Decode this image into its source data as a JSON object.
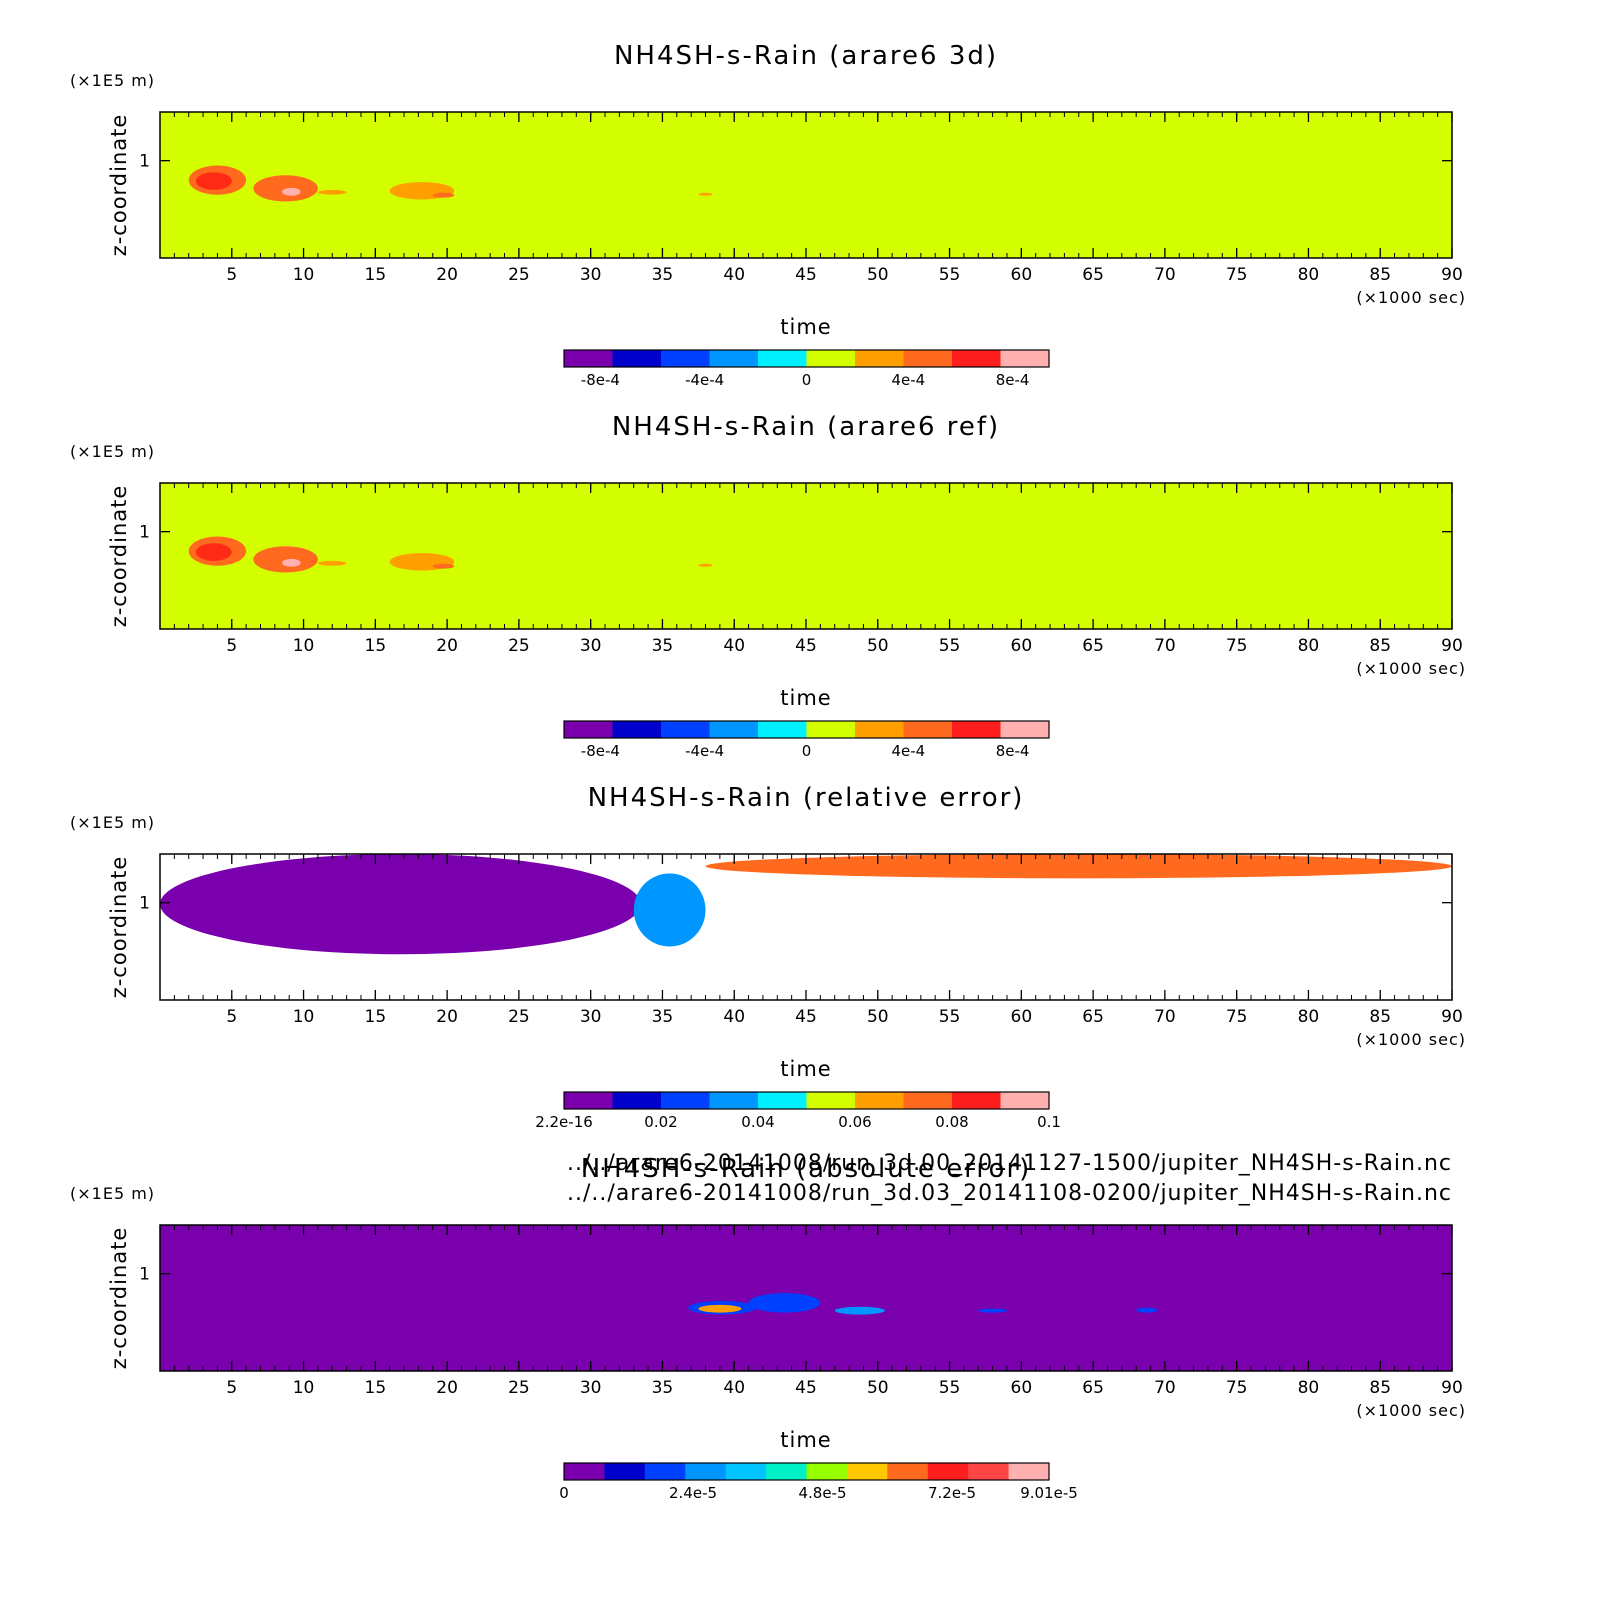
{
  "files": [
    "../../arare6-20141008/run_3d.00_20141127-1500/jupiter_NH4SH-s-Rain.nc",
    "../../arare6-20141008/run_3d.03_20141108-0200/jupiter_NH4SH-s-Rain.nc"
  ],
  "chart_data": [
    {
      "type": "heatmap",
      "title": "NH4SH-s-Rain (arare6 3d)",
      "xlabel": "time",
      "x_unit": "(×1000 sec)",
      "ylabel": "z-coordinate",
      "y_unit": "(×1E5 m)",
      "xlim": [
        0,
        90
      ],
      "ylim": [
        0,
        1.5
      ],
      "xticks": [
        5,
        10,
        15,
        20,
        25,
        30,
        35,
        40,
        45,
        50,
        55,
        60,
        65,
        70,
        75,
        80,
        85,
        90
      ],
      "yticks": [
        1
      ],
      "background_color": "#d4ff00",
      "features": [
        {
          "x": [
            2,
            6
          ],
          "y": [
            0.65,
            0.95
          ],
          "level": "5e-4 to 8e-4",
          "color": "#ff6a1f"
        },
        {
          "x": [
            2.5,
            5
          ],
          "y": [
            0.7,
            0.88
          ],
          "level": "8e-4 to 1e-3",
          "color": "#ff2a16"
        },
        {
          "x": [
            6.5,
            11
          ],
          "y": [
            0.58,
            0.85
          ],
          "level": "5e-4 to 8e-4",
          "color": "#ff6a1f"
        },
        {
          "x": [
            8.5,
            9.8
          ],
          "y": [
            0.64,
            0.72
          ],
          "level": "1e-3",
          "color": "#ffb0b0"
        },
        {
          "x": [
            11,
            13
          ],
          "y": [
            0.65,
            0.7
          ],
          "level": "2e-4 to 4e-4",
          "color": "#ffa000"
        },
        {
          "x": [
            16,
            20.5
          ],
          "y": [
            0.6,
            0.78
          ],
          "level": "2e-4 to 4e-4",
          "color": "#ffa000"
        },
        {
          "x": [
            19,
            20.5
          ],
          "y": [
            0.62,
            0.67
          ],
          "level": "4e-4 to 6e-4",
          "color": "#ff6a1f"
        },
        {
          "x": [
            37.5,
            38.5
          ],
          "y": [
            0.64,
            0.67
          ],
          "level": "2e-4 to 4e-4",
          "color": "#ffa000"
        }
      ],
      "colorbar": {
        "colors": [
          "#7a00ae",
          "#0000cc",
          "#0040ff",
          "#0096ff",
          "#00f0ff",
          "#d4ff00",
          "#ffa000",
          "#ff6a1f",
          "#ff1e1e",
          "#ffb0b0"
        ],
        "tick_labels": [
          "-8e-4",
          "-4e-4",
          "0",
          "4e-4",
          "8e-4"
        ],
        "tick_fractions": [
          0.075,
          0.29,
          0.5,
          0.71,
          0.925
        ]
      }
    },
    {
      "type": "heatmap",
      "title": "NH4SH-s-Rain (arare6 ref)",
      "xlabel": "time",
      "x_unit": "(×1000 sec)",
      "ylabel": "z-coordinate",
      "y_unit": "(×1E5 m)",
      "xlim": [
        0,
        90
      ],
      "ylim": [
        0,
        1.5
      ],
      "xticks": [
        5,
        10,
        15,
        20,
        25,
        30,
        35,
        40,
        45,
        50,
        55,
        60,
        65,
        70,
        75,
        80,
        85,
        90
      ],
      "yticks": [
        1
      ],
      "background_color": "#d4ff00",
      "features": [
        {
          "x": [
            2,
            6
          ],
          "y": [
            0.65,
            0.95
          ],
          "level": "5e-4 to 8e-4",
          "color": "#ff6a1f"
        },
        {
          "x": [
            2.5,
            5
          ],
          "y": [
            0.7,
            0.88
          ],
          "level": "8e-4 to 1e-3",
          "color": "#ff2a16"
        },
        {
          "x": [
            6.5,
            11
          ],
          "y": [
            0.58,
            0.85
          ],
          "level": "5e-4 to 8e-4",
          "color": "#ff6a1f"
        },
        {
          "x": [
            8.5,
            9.8
          ],
          "y": [
            0.64,
            0.72
          ],
          "level": "1e-3",
          "color": "#ffb0b0"
        },
        {
          "x": [
            11,
            13
          ],
          "y": [
            0.65,
            0.7
          ],
          "level": "2e-4 to 4e-4",
          "color": "#ffa000"
        },
        {
          "x": [
            16,
            20.5
          ],
          "y": [
            0.6,
            0.78
          ],
          "level": "2e-4 to 4e-4",
          "color": "#ffa000"
        },
        {
          "x": [
            19,
            20.5
          ],
          "y": [
            0.62,
            0.67
          ],
          "level": "4e-4 to 6e-4",
          "color": "#ff6a1f"
        },
        {
          "x": [
            37.5,
            38.5
          ],
          "y": [
            0.64,
            0.67
          ],
          "level": "2e-4 to 4e-4",
          "color": "#ffa000"
        }
      ],
      "colorbar": {
        "colors": [
          "#7a00ae",
          "#0000cc",
          "#0040ff",
          "#0096ff",
          "#00f0ff",
          "#d4ff00",
          "#ffa000",
          "#ff6a1f",
          "#ff1e1e",
          "#ffb0b0"
        ],
        "tick_labels": [
          "-8e-4",
          "-4e-4",
          "0",
          "4e-4",
          "8e-4"
        ],
        "tick_fractions": [
          0.075,
          0.29,
          0.5,
          0.71,
          0.925
        ]
      }
    },
    {
      "type": "heatmap",
      "title": "NH4SH-s-Rain (relative error)",
      "xlabel": "time",
      "x_unit": "(×1000 sec)",
      "ylabel": "z-coordinate",
      "y_unit": "(×1E5 m)",
      "xlim": [
        0,
        90
      ],
      "ylim": [
        0,
        1.5
      ],
      "xticks": [
        5,
        10,
        15,
        20,
        25,
        30,
        35,
        40,
        45,
        50,
        55,
        60,
        65,
        70,
        75,
        80,
        85,
        90
      ],
      "yticks": [
        1
      ],
      "background_color": "#ffffff",
      "features": [
        {
          "x": [
            0,
            33.5
          ],
          "y": [
            0.47,
            1.5
          ],
          "level": "2.2e-16 to 0.01",
          "color": "#7a00ae"
        },
        {
          "x": [
            33,
            38
          ],
          "y": [
            0.55,
            1.3
          ],
          "level": "0.02 to 0.1",
          "color": "#0096ff"
        },
        {
          "x": [
            38,
            90
          ],
          "y": [
            1.25,
            1.5
          ],
          "level": "0.02 to 0.1",
          "color": "#ff6a1f"
        }
      ],
      "colorbar": {
        "colors": [
          "#7a00ae",
          "#0000cc",
          "#0040ff",
          "#0096ff",
          "#00f0ff",
          "#d4ff00",
          "#ffa000",
          "#ff6a1f",
          "#ff1e1e",
          "#ffb0b0"
        ],
        "tick_labels": [
          "2.2e-16",
          "0.02",
          "0.04",
          "0.06",
          "0.08",
          "0.1"
        ],
        "tick_fractions": [
          0.0,
          0.2,
          0.4,
          0.6,
          0.8,
          1.0
        ]
      }
    },
    {
      "type": "heatmap",
      "title": "NH4SH-s-Rain (absolute error)",
      "xlabel": "time",
      "x_unit": "(×1000 sec)",
      "ylabel": "z-coordinate",
      "y_unit": "(×1E5 m)",
      "xlim": [
        0,
        90
      ],
      "ylim": [
        0,
        1.5
      ],
      "xticks": [
        5,
        10,
        15,
        20,
        25,
        30,
        35,
        40,
        45,
        50,
        55,
        60,
        65,
        70,
        75,
        80,
        85,
        90
      ],
      "yticks": [
        1
      ],
      "background_color": "#7a00ae",
      "features": [
        {
          "x": [
            36.8,
            41.5
          ],
          "y": [
            0.58,
            0.72
          ],
          "level": "1.2e-5 to 8e-5",
          "color": "#0040ff"
        },
        {
          "x": [
            37.5,
            40.5
          ],
          "y": [
            0.6,
            0.68
          ],
          "level": "4.8e-5 to 7.2e-5",
          "color": "#ffa000"
        },
        {
          "x": [
            41,
            46
          ],
          "y": [
            0.6,
            0.8
          ],
          "level": "1.2e-5 to 3.6e-5",
          "color": "#0040ff"
        },
        {
          "x": [
            47,
            50.5
          ],
          "y": [
            0.58,
            0.66
          ],
          "level": "1.2e-5 to 4.8e-5",
          "color": "#0096ff"
        },
        {
          "x": [
            57,
            59
          ],
          "y": [
            0.6,
            0.64
          ],
          "level": "1.2e-5 to 2.4e-5",
          "color": "#0040ff"
        },
        {
          "x": [
            68,
            69.5
          ],
          "y": [
            0.6,
            0.65
          ],
          "level": "1.2e-5 to 2.4e-5",
          "color": "#0040ff"
        }
      ],
      "colorbar": {
        "colors": [
          "#7a00ae",
          "#0000cc",
          "#0040ff",
          "#0096ff",
          "#00c4ff",
          "#00f0c8",
          "#96ff00",
          "#ffc800",
          "#ff6a1f",
          "#ff1e1e",
          "#ff4646",
          "#ffb0b0"
        ],
        "tick_labels": [
          "0",
          "2.4e-5",
          "4.8e-5",
          "7.2e-5",
          "9.01e-5"
        ],
        "tick_fractions": [
          0.0,
          0.266,
          0.533,
          0.8,
          1.0
        ]
      }
    }
  ]
}
